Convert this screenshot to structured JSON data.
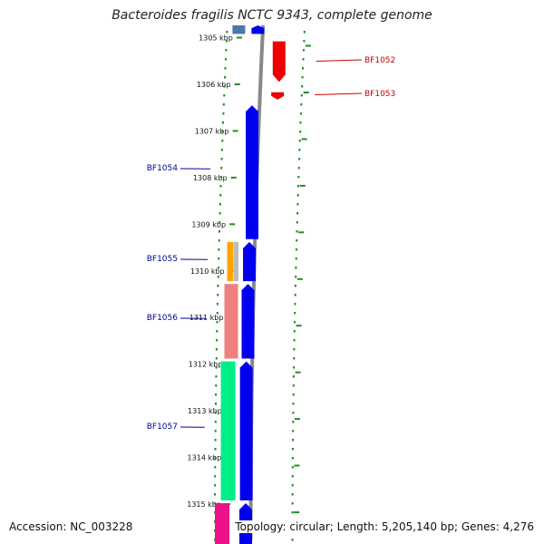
{
  "header": {
    "title": "Bacteroides fragilis NCTC 9343, complete genome"
  },
  "footer": {
    "accession": "Accession: NC_003228",
    "stats": "Topology: circular; Length: 5,205,140 bp; Genes: 4,276"
  },
  "colors": {
    "forward_gene": "#0000ee",
    "reverse_gene": "#ee0000",
    "ticks": "#228b22",
    "backbone": "#888888",
    "forward_label": "#000099",
    "reverse_label": "#cc0000"
  },
  "ticks": [
    {
      "kbp": 1305,
      "label": "1305 kbp"
    },
    {
      "kbp": 1306,
      "label": "1306 kbp"
    },
    {
      "kbp": 1307,
      "label": "1307 kbp"
    },
    {
      "kbp": 1308,
      "label": "1308 kbp"
    },
    {
      "kbp": 1309,
      "label": "1309 kbp"
    },
    {
      "kbp": 1310,
      "label": "1310 kbp"
    },
    {
      "kbp": 1311,
      "label": "1311 kbp"
    },
    {
      "kbp": 1312,
      "label": "1312 kbp"
    },
    {
      "kbp": 1313,
      "label": "1313 kbp"
    },
    {
      "kbp": 1314,
      "label": "1314 kbp"
    },
    {
      "kbp": 1315,
      "label": "1315 kbp"
    }
  ],
  "genes": [
    {
      "name": "BF1052",
      "strand": "-",
      "start_kbp": 1305.08,
      "end_kbp": 1305.95,
      "show_label": true
    },
    {
      "name": "BF1053",
      "strand": "-",
      "start_kbp": 1306.17,
      "end_kbp": 1306.33,
      "show_label": true
    },
    {
      "name": "BF1054",
      "strand": "+",
      "start_kbp": 1306.45,
      "end_kbp": 1309.32,
      "show_label": true
    },
    {
      "name": "BF1055",
      "strand": "+",
      "start_kbp": 1309.38,
      "end_kbp": 1310.22,
      "show_label": true
    },
    {
      "name": "BF1056",
      "strand": "+",
      "start_kbp": 1310.28,
      "end_kbp": 1311.88,
      "show_label": true
    },
    {
      "name": "BF1057",
      "strand": "+",
      "start_kbp": 1311.94,
      "end_kbp": 1314.92,
      "show_label": true
    },
    {
      "name": "",
      "strand": "+",
      "start_kbp": 1314.98,
      "end_kbp": 1316.0,
      "show_label": false
    },
    {
      "name": "",
      "strand": "+",
      "start_kbp": 1304.0,
      "end_kbp": 1304.92,
      "show_label": false
    }
  ],
  "feature_blocks": [
    {
      "kind": "orange",
      "color": "#ffa500",
      "start_kbp": 1309.38,
      "end_kbp": 1310.22
    },
    {
      "kind": "gray",
      "color": "#bbbbbb",
      "start_kbp": 1309.38,
      "end_kbp": 1310.22
    },
    {
      "kind": "pink",
      "color": "#f08080",
      "start_kbp": 1310.28,
      "end_kbp": 1311.88
    },
    {
      "kind": "green",
      "color": "#00ee88",
      "start_kbp": 1311.94,
      "end_kbp": 1314.92
    },
    {
      "kind": "magenta",
      "color": "#ee1188",
      "start_kbp": 1314.98,
      "end_kbp": 1316.0
    },
    {
      "kind": "steel",
      "color": "#4a78a8",
      "start_kbp": 1304.0,
      "end_kbp": 1304.92
    }
  ]
}
